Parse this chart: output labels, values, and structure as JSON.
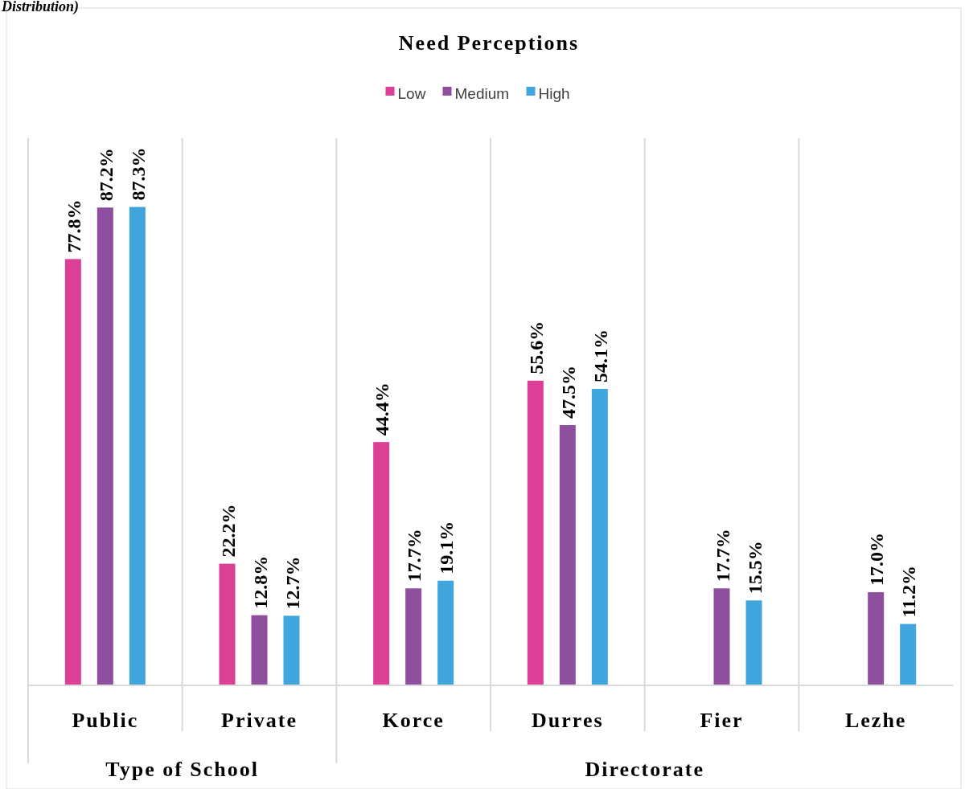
{
  "chart_data": {
    "type": "bar",
    "title": "Need Perceptions",
    "categories": [
      "Public",
      "Private",
      "Korce",
      "Durres",
      "Fier",
      "Lezhe"
    ],
    "series": [
      {
        "name": "Low",
        "color": "#dc3f96",
        "values": [
          77.8,
          22.2,
          44.4,
          55.6,
          null,
          null
        ],
        "value_labels": [
          "77.8%",
          "22.2%",
          "44.4%",
          "55.6%",
          null,
          null
        ]
      },
      {
        "name": "Medium",
        "color": "#8e4f9f",
        "values": [
          87.2,
          12.8,
          17.7,
          47.5,
          17.7,
          17.0
        ],
        "value_labels": [
          "87.2%",
          "12.8%",
          "17.7%",
          "47.5%",
          "17.7%",
          "17.0%"
        ]
      },
      {
        "name": "High",
        "color": "#3fa5dc",
        "values": [
          87.3,
          12.7,
          19.1,
          54.1,
          15.5,
          11.2
        ],
        "value_labels": [
          "87.3%",
          "12.7%",
          "19.1%",
          "54.1%",
          "15.5%",
          "11.2%"
        ]
      }
    ],
    "ylim": [
      0,
      100
    ],
    "tick_labels": "x",
    "legend": "top",
    "grid": false,
    "annotations": [
      "Distribution)",
      "Type of School",
      "Directorate"
    ]
  }
}
